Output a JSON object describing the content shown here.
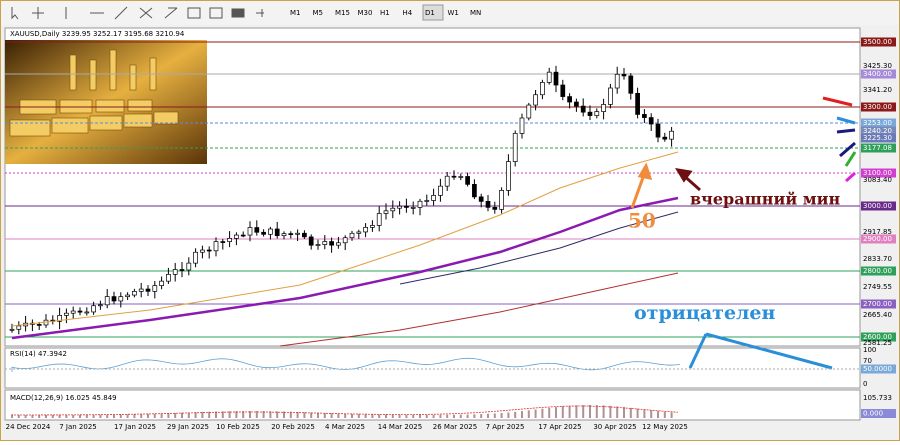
{
  "toolbar": {
    "timeframes": [
      "M1",
      "M5",
      "M15",
      "M30",
      "H1",
      "H4",
      "D1",
      "W1",
      "MN"
    ]
  },
  "chart": {
    "header": "XAUUSD,Daily  3239.95 3252.17 3195.68 3210.94",
    "price_labels": [
      "3500.00",
      "3425.30",
      "3400.00",
      "3341.20",
      "3300.00",
      "3253.00",
      "3240.20",
      "3225.30",
      "3177.08",
      "3100.00",
      "3083.40",
      "3000.00",
      "2917.85",
      "2900.00",
      "2833.70",
      "2800.00",
      "2749.55",
      "2700.00",
      "2665.40",
      "2600.00",
      "2581.25"
    ],
    "dates": [
      "24 Dec 2024",
      "7 Jan 2025",
      "17 Jan 2025",
      "29 Jan 2025",
      "10 Feb 2025",
      "20 Feb 2025",
      "4 Mar 2025",
      "14 Mar 2025",
      "26 Mar 2025",
      "7 Apr 2025",
      "17 Apr 2025",
      "30 Apr 2025",
      "12 May 2025"
    ],
    "annotations": {
      "ma": "50",
      "yesterday_low": "вчерашний мин",
      "rsi_note": "отрицателен"
    }
  },
  "rsi": {
    "header": "RSI(14) 47.3942",
    "labels": [
      "100",
      "70",
      "50.0000",
      "0"
    ]
  },
  "macd": {
    "header": "MACD(12,26,9) 16.025 45.849",
    "labels": [
      "105.733",
      "0.000"
    ]
  }
}
